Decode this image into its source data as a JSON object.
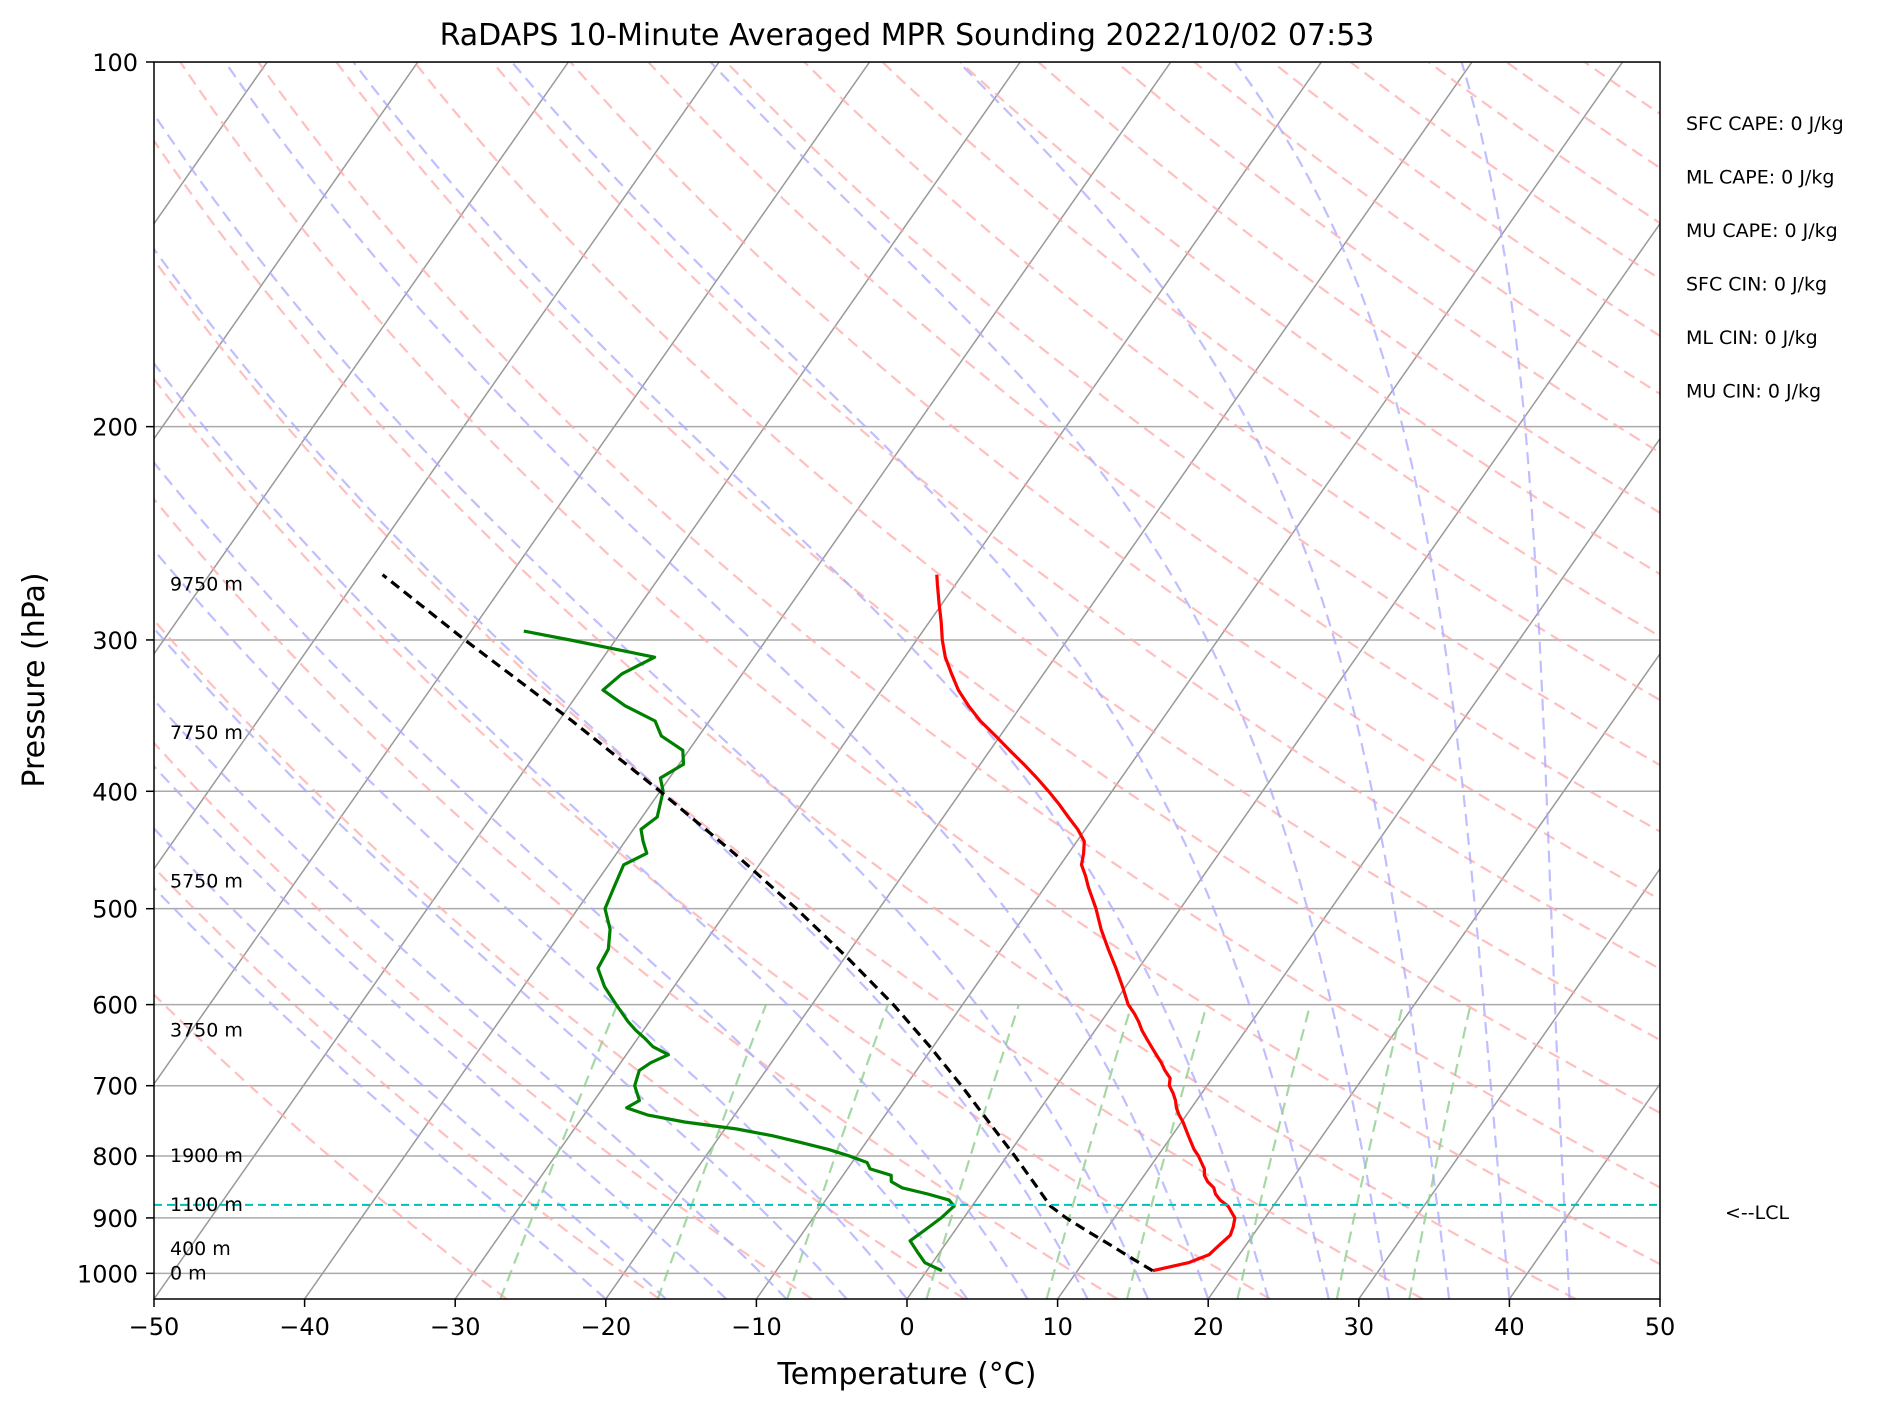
{
  "chart_data": {
    "type": "skew-t",
    "title": "RaDAPS 10-Minute Averaged MPR Sounding 2022/10/02 07:53",
    "xlabel": "Temperature (°C)",
    "ylabel": "Pressure (hPa)",
    "xlim": [
      -50,
      50
    ],
    "ylim": [
      1050,
      100
    ],
    "y_scale": "log",
    "x_ticks": [
      "−50",
      "−40",
      "−30",
      "−20",
      "−10",
      "0",
      "10",
      "20",
      "30",
      "40",
      "50"
    ],
    "x_tick_values": [
      -50,
      -40,
      -30,
      -20,
      -10,
      0,
      10,
      20,
      30,
      40,
      50
    ],
    "y_ticks": [
      "100",
      "200",
      "300",
      "400",
      "500",
      "600",
      "700",
      "800",
      "900",
      "1000"
    ],
    "y_tick_values": [
      100,
      200,
      300,
      400,
      500,
      600,
      700,
      800,
      900,
      1000
    ],
    "grid": true,
    "colors": {
      "temperature": "#ff0000",
      "dewpoint": "#008000",
      "parcel": "#000000",
      "lcl": "#00bfbf",
      "isotherms": "#999999",
      "dry_adiabats": "#ffaaaa",
      "moist_adiabats": "#aaaaff",
      "mixing_ratio": "#8fce8f"
    },
    "temperature_profile": {
      "pressure": [
        995,
        980,
        965,
        950,
        930,
        915,
        900,
        890,
        880,
        870,
        860,
        850,
        840,
        830,
        820,
        810,
        800,
        790,
        780,
        770,
        760,
        750,
        740,
        730,
        720,
        710,
        700,
        690,
        680,
        670,
        660,
        650,
        640,
        630,
        620,
        610,
        600,
        580,
        560,
        540,
        520,
        500,
        480,
        470,
        460,
        450,
        440,
        430,
        420,
        410,
        400,
        390,
        380,
        370,
        360,
        350,
        340,
        330,
        320,
        310,
        300,
        290,
        280,
        270,
        265
      ],
      "values": [
        15.0,
        17.0,
        18.0,
        18.2,
        18.5,
        18.3,
        18.0,
        17.5,
        17.0,
        16.2,
        15.6,
        15.2,
        14.5,
        14.0,
        13.7,
        13.2,
        12.7,
        12.1,
        11.6,
        11.1,
        10.6,
        10.1,
        9.5,
        9.0,
        8.6,
        8.1,
        7.5,
        7.2,
        6.5,
        5.9,
        5.2,
        4.5,
        3.8,
        3.1,
        2.5,
        1.8,
        1.0,
        -0.2,
        -1.5,
        -2.9,
        -4.3,
        -5.6,
        -7.1,
        -7.8,
        -8.6,
        -9.0,
        -9.5,
        -10.5,
        -11.7,
        -12.9,
        -14.2,
        -15.6,
        -17.1,
        -18.7,
        -20.3,
        -22.0,
        -23.5,
        -24.9,
        -26.1,
        -27.3,
        -28.3,
        -29.2,
        -30.2,
        -31.2,
        -31.7
      ]
    },
    "dewpoint_profile": {
      "pressure": [
        995,
        980,
        960,
        940,
        920,
        900,
        880,
        870,
        860,
        850,
        840,
        830,
        820,
        810,
        800,
        790,
        780,
        770,
        760,
        750,
        740,
        730,
        720,
        700,
        680,
        670,
        660,
        650,
        640,
        630,
        620,
        600,
        580,
        560,
        540,
        520,
        500,
        480,
        460,
        450,
        440,
        430,
        420,
        400,
        390,
        380,
        370,
        360,
        350,
        340,
        330,
        320,
        310,
        300,
        295
      ],
      "values": [
        1.0,
        -0.5,
        -1.5,
        -2.5,
        -2.0,
        -1.5,
        -1.2,
        -1.8,
        -3.5,
        -5.5,
        -6.5,
        -6.8,
        -8.5,
        -9.0,
        -10.5,
        -12.2,
        -14.3,
        -16.5,
        -19.2,
        -23.0,
        -25.8,
        -27.5,
        -27.0,
        -28.0,
        -28.4,
        -28.0,
        -27.2,
        -28.6,
        -29.5,
        -30.5,
        -31.4,
        -33.0,
        -34.6,
        -35.9,
        -36.1,
        -36.9,
        -38.2,
        -38.6,
        -39.0,
        -38.0,
        -38.8,
        -39.5,
        -39.0,
        -39.8,
        -40.6,
        -39.7,
        -40.4,
        -42.5,
        -43.6,
        -46.3,
        -48.5,
        -48.0,
        -46.6,
        -53.0,
        -56.5
      ]
    },
    "parcel_profile": {
      "pressure": [
        995,
        975,
        950,
        925,
        900,
        880,
        850,
        800,
        750,
        700,
        650,
        600,
        550,
        500,
        450,
        400,
        350,
        300,
        265
      ],
      "values": [
        15.0,
        13.3,
        11.2,
        9.0,
        6.8,
        5.2,
        3.5,
        0.5,
        -2.8,
        -6.3,
        -10.2,
        -14.6,
        -19.7,
        -25.5,
        -32.2,
        -40.0,
        -49.1,
        -60.0,
        -68.5
      ]
    },
    "lcl_pressure": 878,
    "lcl_label": "<--LCL",
    "height_labels": [
      {
        "text": "0 m",
        "pressure": 1000
      },
      {
        "text": "400 m",
        "pressure": 955
      },
      {
        "text": "1100 m",
        "pressure": 878
      },
      {
        "text": "1900 m",
        "pressure": 800
      },
      {
        "text": "3750 m",
        "pressure": 630
      },
      {
        "text": "5750 m",
        "pressure": 475
      },
      {
        "text": "7750 m",
        "pressure": 358
      },
      {
        "text": "9750 m",
        "pressure": 270
      }
    ],
    "indices": [
      "SFC CAPE: 0 J/kg",
      "ML CAPE: 0 J/kg",
      "MU CAPE: 0 J/kg",
      "SFC CIN: 0 J/kg",
      "ML CIN: 0 J/kg",
      "MU CIN: 0 J/kg"
    ]
  }
}
